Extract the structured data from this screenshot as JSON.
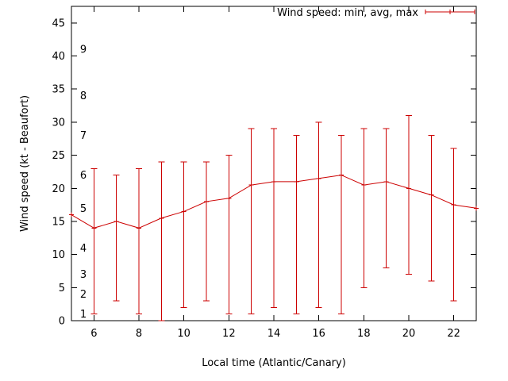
{
  "chart_data": {
    "type": "line",
    "title": "",
    "legend": "Wind speed: min, avg, max",
    "xlabel": "Local time (Atlantic/Canary)",
    "ylabel": "Wind speed (kt - Beaufort)",
    "legend_position": "top-right",
    "grid": false,
    "line_color": "#cc0000",
    "border_color": "#000000",
    "xlim": [
      5,
      23
    ],
    "ylim": [
      0,
      47.5
    ],
    "xticks": [
      6,
      8,
      10,
      12,
      14,
      16,
      18,
      20,
      22
    ],
    "yticks": [
      0,
      5,
      10,
      15,
      20,
      25,
      30,
      35,
      40,
      45
    ],
    "x": [
      5,
      6,
      7,
      8,
      9,
      10,
      11,
      12,
      13,
      14,
      15,
      16,
      17,
      18,
      19,
      20,
      21,
      22,
      23
    ],
    "series": [
      {
        "name": "avg",
        "values": [
          16,
          14,
          15,
          14,
          15.5,
          16.5,
          18,
          18.5,
          20.5,
          21,
          21,
          21.5,
          22,
          20.5,
          21,
          20,
          19,
          17.5,
          17
        ]
      },
      {
        "name": "min",
        "values": [
          null,
          1,
          3,
          1,
          0,
          2,
          3,
          1,
          1,
          2,
          1,
          2,
          1,
          5,
          8,
          7,
          6,
          3,
          null
        ]
      },
      {
        "name": "max",
        "values": [
          null,
          23,
          22,
          23,
          24,
          24,
          24,
          25,
          29,
          29,
          28,
          30,
          28,
          29,
          29,
          31,
          28,
          26,
          null
        ]
      }
    ],
    "beaufort_labels": [
      {
        "label": "1",
        "kt": 1
      },
      {
        "label": "2",
        "kt": 4
      },
      {
        "label": "3",
        "kt": 7
      },
      {
        "label": "4",
        "kt": 11
      },
      {
        "label": "5",
        "kt": 17
      },
      {
        "label": "6",
        "kt": 22
      },
      {
        "label": "7",
        "kt": 28
      },
      {
        "label": "8",
        "kt": 34
      },
      {
        "label": "9",
        "kt": 41
      }
    ]
  }
}
